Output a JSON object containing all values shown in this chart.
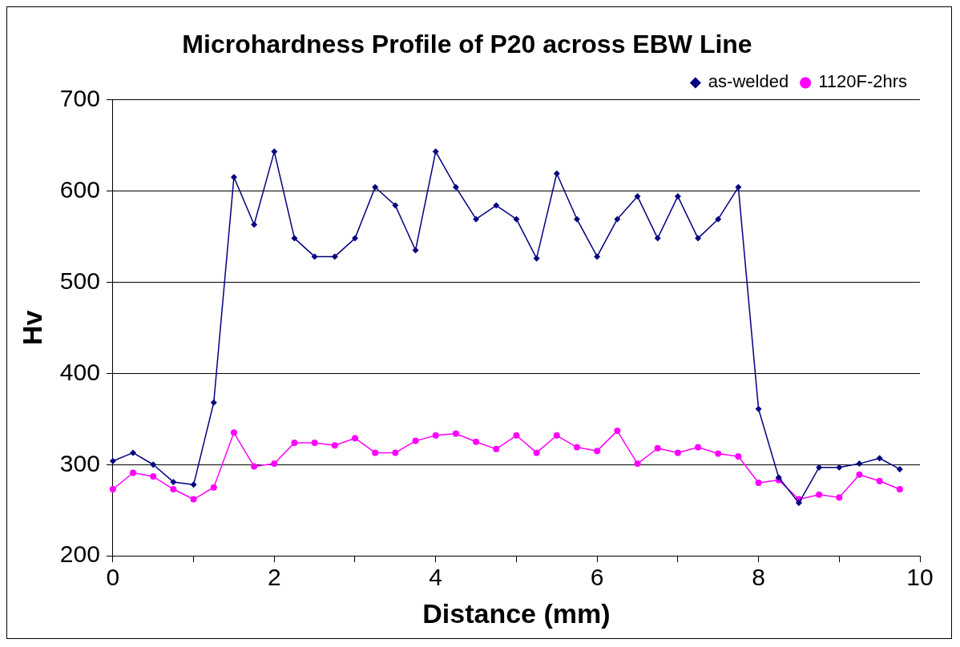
{
  "chart_data": {
    "type": "line",
    "title": "Microhardness Profile of P20 across EBW Line",
    "xlabel": "Distance (mm)",
    "ylabel": "Hv",
    "x": [
      0,
      0.25,
      0.5,
      0.75,
      1,
      1.25,
      1.5,
      1.75,
      2,
      2.25,
      2.5,
      2.75,
      3,
      3.25,
      3.5,
      3.75,
      4,
      4.25,
      4.5,
      4.75,
      5,
      5.25,
      5.5,
      5.75,
      6,
      6.25,
      6.5,
      6.75,
      7,
      7.25,
      7.5,
      7.75,
      8,
      8.25,
      8.5,
      8.75,
      9,
      9.25,
      9.5,
      9.75
    ],
    "series": [
      {
        "name": "as-welded",
        "color": "#000080",
        "marker": "diamond",
        "values": [
          304,
          313,
          300,
          281,
          278,
          368,
          615,
          563,
          643,
          548,
          528,
          528,
          548,
          604,
          584,
          535,
          643,
          604,
          569,
          584,
          569,
          526,
          619,
          569,
          528,
          569,
          594,
          548,
          594,
          548,
          569,
          604,
          361,
          286,
          258,
          297,
          297,
          301,
          307,
          295
        ]
      },
      {
        "name": "1120F-2hrs",
        "color": "#ff00ff",
        "marker": "circle",
        "values": [
          273,
          291,
          287,
          273,
          262,
          275,
          335,
          298,
          301,
          324,
          324,
          321,
          329,
          313,
          313,
          326,
          332,
          334,
          325,
          317,
          332,
          313,
          332,
          319,
          315,
          337,
          301,
          318,
          313,
          319,
          312,
          309,
          280,
          283,
          262,
          267,
          264,
          289,
          282,
          273
        ]
      }
    ],
    "xlim": [
      0,
      10
    ],
    "xticks": [
      0,
      {
        "value": 1,
        "label": null
      },
      2,
      {
        "value": 3,
        "label": null
      },
      4,
      {
        "value": 5,
        "label": null
      },
      6,
      {
        "value": 7,
        "label": null
      },
      8,
      {
        "value": 9,
        "label": null
      },
      10
    ],
    "ylim": [
      200,
      700
    ],
    "yticks": [
      200,
      300,
      400,
      500,
      600,
      700
    ],
    "grid": "y",
    "legend": "top right"
  }
}
